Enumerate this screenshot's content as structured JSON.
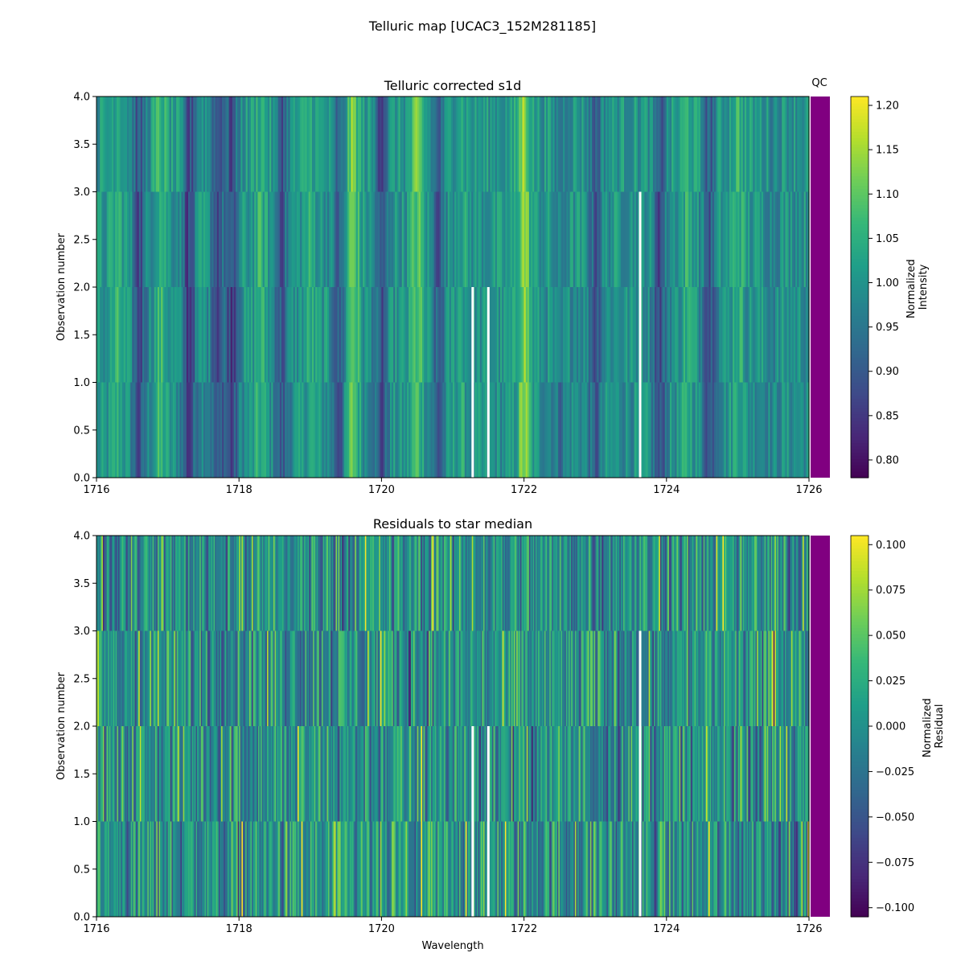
{
  "figure_title": "Telluric map [UCAC3_152M281185]",
  "qc_label": "QC",
  "qc_color": "#800080",
  "gap_color": "#ffffff",
  "chart_data": [
    {
      "type": "heatmap",
      "title": "Telluric corrected s1d",
      "xlabel": "",
      "ylabel": "Observation number",
      "xlim": [
        1716,
        1726
      ],
      "ylim": [
        0,
        4
      ],
      "xticks": [
        "1716",
        "1718",
        "1720",
        "1722",
        "1724",
        "1726"
      ],
      "yticks": [
        "0.0",
        "0.5",
        "1.0",
        "1.5",
        "2.0",
        "2.5",
        "3.0",
        "3.5",
        "4.0"
      ],
      "observation_rows": [
        0,
        1,
        2,
        3
      ],
      "colormap": "viridis",
      "value_range": [
        0.78,
        1.21
      ],
      "colorbar_label": [
        "Normalized",
        "Intensity"
      ],
      "colorbar_ticks": [
        "0.80",
        "0.85",
        "0.90",
        "0.95",
        "1.00",
        "1.05",
        "1.10",
        "1.15",
        "1.20"
      ],
      "gaps": [
        {
          "x": 1721.28,
          "rows": [
            0,
            1
          ]
        },
        {
          "x": 1721.5,
          "rows": [
            0,
            1
          ]
        },
        {
          "x": 1723.63,
          "rows": [
            0,
            1,
            2
          ]
        }
      ],
      "profile": [
        {
          "x": 1716.3,
          "v": 1.05
        },
        {
          "x": 1716.6,
          "v": 0.88
        },
        {
          "x": 1716.9,
          "v": 1.06
        },
        {
          "x": 1717.3,
          "v": 0.86
        },
        {
          "x": 1717.7,
          "v": 0.89
        },
        {
          "x": 1717.9,
          "v": 0.87
        },
        {
          "x": 1718.3,
          "v": 1.05
        },
        {
          "x": 1718.6,
          "v": 0.9
        },
        {
          "x": 1719.0,
          "v": 1.04
        },
        {
          "x": 1719.4,
          "v": 0.9
        },
        {
          "x": 1719.6,
          "v": 1.11
        },
        {
          "x": 1720.0,
          "v": 0.88
        },
        {
          "x": 1720.5,
          "v": 1.09
        },
        {
          "x": 1720.8,
          "v": 0.9
        },
        {
          "x": 1721.1,
          "v": 1.04
        },
        {
          "x": 1722.0,
          "v": 1.14
        },
        {
          "x": 1722.5,
          "v": 0.95
        },
        {
          "x": 1723.0,
          "v": 0.9
        },
        {
          "x": 1723.5,
          "v": 1.0
        },
        {
          "x": 1723.9,
          "v": 0.88
        },
        {
          "x": 1724.3,
          "v": 1.05
        },
        {
          "x": 1724.6,
          "v": 0.9
        },
        {
          "x": 1725.0,
          "v": 1.06
        },
        {
          "x": 1725.5,
          "v": 0.98
        }
      ]
    },
    {
      "type": "heatmap",
      "title": "Residuals to star median",
      "xlabel": "Wavelength",
      "ylabel": "Observation number",
      "xlim": [
        1716,
        1726
      ],
      "ylim": [
        0,
        4
      ],
      "xticks": [
        "1716",
        "1718",
        "1720",
        "1722",
        "1724",
        "1726"
      ],
      "yticks": [
        "0.0",
        "0.5",
        "1.0",
        "1.5",
        "2.0",
        "2.5",
        "3.0",
        "3.5",
        "4.0"
      ],
      "observation_rows": [
        0,
        1,
        2,
        3
      ],
      "colormap": "viridis",
      "value_range": [
        -0.105,
        0.105
      ],
      "colorbar_label": [
        "Normalized",
        "Residual"
      ],
      "colorbar_ticks": [
        "-0.100",
        "-0.075",
        "-0.050",
        "-0.025",
        "0.000",
        "0.025",
        "0.050",
        "0.075",
        "0.100"
      ],
      "gaps": [
        {
          "x": 1721.28,
          "rows": [
            0,
            1
          ]
        },
        {
          "x": 1721.5,
          "rows": [
            0,
            1
          ]
        },
        {
          "x": 1723.63,
          "rows": [
            0,
            1,
            2
          ]
        }
      ]
    }
  ]
}
